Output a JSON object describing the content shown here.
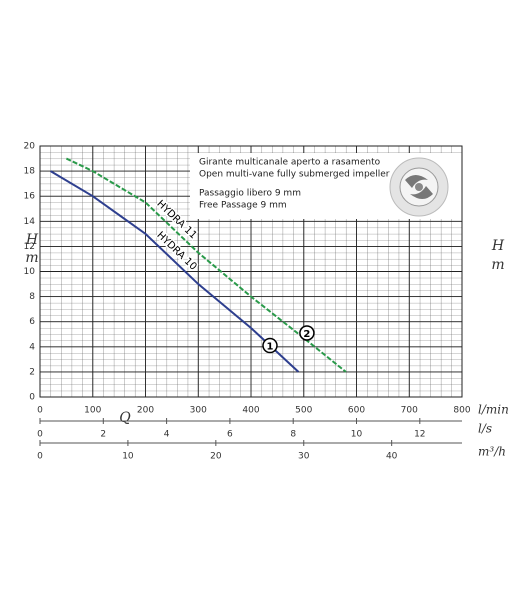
{
  "chart_data": {
    "type": "line",
    "y_label": "H",
    "y_unit": "m",
    "x_label": "Q",
    "x_unit": "l/min",
    "x2_unit": "l/s",
    "x3_unit": "m³/h",
    "xlim": [
      0,
      800
    ],
    "xticks": [
      0,
      100,
      200,
      300,
      400,
      500,
      600,
      700,
      800
    ],
    "x2lim": [
      0,
      13.333
    ],
    "x2ticks": [
      0,
      2,
      4,
      6,
      8,
      10,
      12
    ],
    "x3lim": [
      0,
      48
    ],
    "x3ticks": [
      0,
      10,
      20,
      30,
      40
    ],
    "ylim": [
      0,
      20
    ],
    "yticks": [
      0,
      2,
      4,
      6,
      8,
      10,
      12,
      14,
      16,
      18,
      20
    ],
    "grid": true,
    "series": [
      {
        "name": "HYDRA 10",
        "color": "#2e3f8f",
        "dashed": false,
        "x": [
          20,
          100,
          200,
          300,
          400,
          490
        ],
        "values": [
          18,
          16,
          13,
          9,
          5.5,
          2
        ]
      },
      {
        "name": "HYDRA 11",
        "color": "#2a9a4a",
        "dashed": true,
        "x": [
          50,
          100,
          200,
          300,
          400,
          500,
          580
        ],
        "values": [
          19,
          18,
          15.5,
          11.5,
          8,
          4.7,
          2
        ]
      }
    ],
    "annotations": [
      {
        "text": "1",
        "x": 436,
        "y": 4.1
      },
      {
        "text": "2",
        "x": 506,
        "y": 5.1
      }
    ],
    "info_box": [
      "Girante multicanale aperto a rasamento",
      "Open multi-vane fully submerged impeller",
      "Passaggio libero 9 mm",
      "Free Passage 9 mm"
    ]
  }
}
